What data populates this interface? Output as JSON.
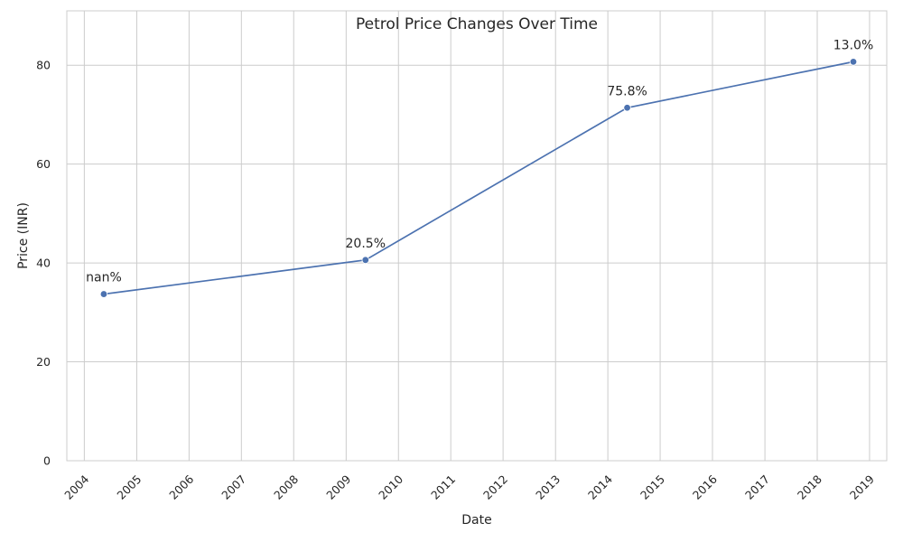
{
  "chart_data": {
    "type": "line",
    "title": "Petrol Price Changes Over Time",
    "xlabel": "Date",
    "ylabel": "Price (INR)",
    "x_ticks": [
      "2004",
      "2005",
      "2006",
      "2007",
      "2008",
      "2009",
      "2010",
      "2011",
      "2012",
      "2013",
      "2014",
      "2015",
      "2016",
      "2017",
      "2018",
      "2019"
    ],
    "y_ticks": [
      "0",
      "20",
      "40",
      "60",
      "80"
    ],
    "xlim": [
      "2003-09-01",
      "2019-05-01"
    ],
    "ylim": [
      0,
      91
    ],
    "grid": true,
    "series": [
      {
        "color": "#4c72b0",
        "points": [
          {
            "x": "2004-05-16",
            "y": 33.7,
            "label": "nan%"
          },
          {
            "x": "2009-05-16",
            "y": 40.6,
            "label": "20.5%"
          },
          {
            "x": "2014-05-16",
            "y": 71.4,
            "label": "75.8%"
          },
          {
            "x": "2018-09-10",
            "y": 80.7,
            "label": "13.0%"
          }
        ]
      }
    ]
  }
}
